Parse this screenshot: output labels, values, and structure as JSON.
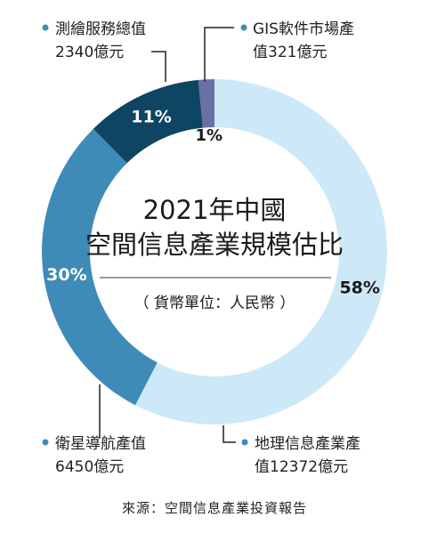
{
  "chart_data": {
    "type": "pie",
    "title_line1": "2021年中國",
    "title_line2": "空間信息產業規模估比",
    "unit_note": "（ 貨幣單位：人民幣 ）",
    "source": "來源：空間信息產業投資報告",
    "slices": [
      {
        "name_line1": "地理信息產業產",
        "name_line2": "值12372億元",
        "value": 12372,
        "percent_label": "58%",
        "color": "#cde9f7",
        "text_color": "#1a1a1a"
      },
      {
        "name_line1": "衛星導航產值",
        "name_line2": "6450億元",
        "value": 6450,
        "percent_label": "30%",
        "color": "#3e8bb7",
        "text_color": "#ffffff"
      },
      {
        "name_line1": "測繪服務總值",
        "name_line2": "2340億元",
        "value": 2340,
        "percent_label": "11%",
        "color": "#0e4563",
        "text_color": "#ffffff"
      },
      {
        "name_line1": "GIS軟件市場產",
        "name_line2": "值321億元",
        "value": 321,
        "percent_label": "1%",
        "color": "#6a6fa4",
        "text_color": "#1a1a1a"
      }
    ]
  }
}
